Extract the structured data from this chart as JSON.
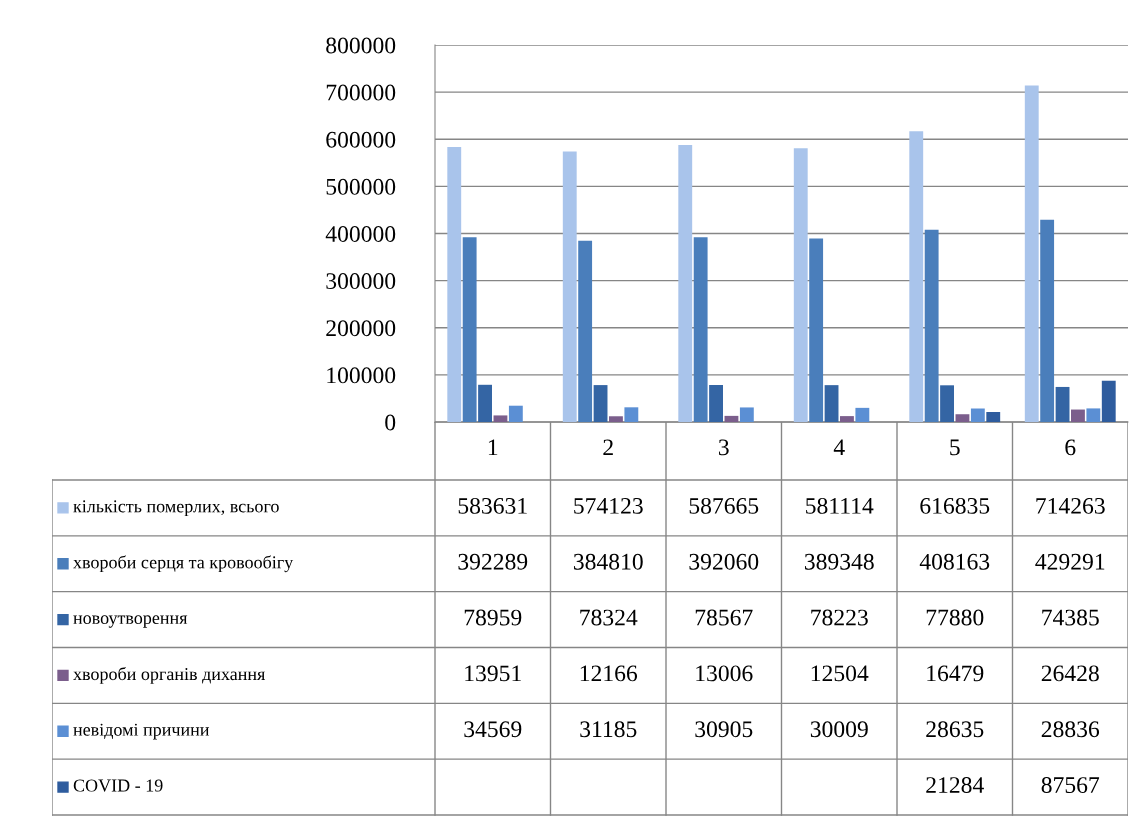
{
  "chart_data": {
    "type": "bar",
    "categories": [
      "1",
      "2",
      "3",
      "4",
      "5",
      "6"
    ],
    "series": [
      {
        "name": "кількість померлих, всього",
        "color": "#a9c4eb",
        "values": [
          583631,
          574123,
          587665,
          581114,
          616835,
          714263
        ]
      },
      {
        "name": "хвороби серця та кровообігу",
        "color": "#4a7ebb",
        "values": [
          392289,
          384810,
          392060,
          389348,
          408163,
          429291
        ]
      },
      {
        "name": "новоутворення",
        "color": "#3465a4",
        "values": [
          78959,
          78324,
          78567,
          78223,
          77880,
          74385
        ]
      },
      {
        "name": "хвороби органів дихання",
        "color": "#7b5e8c",
        "values": [
          13951,
          12166,
          13006,
          12504,
          16479,
          26428
        ]
      },
      {
        "name": "невідомі причини",
        "color": "#5b8fd4",
        "values": [
          34569,
          31185,
          30905,
          30009,
          28635,
          28836
        ]
      },
      {
        "name": "COVID - 19",
        "color": "#2e5c9e",
        "values": [
          null,
          null,
          null,
          null,
          21284,
          87567
        ]
      }
    ],
    "ylim": [
      0,
      800000
    ],
    "yticks": [
      0,
      100000,
      200000,
      300000,
      400000,
      500000,
      600000,
      700000,
      800000
    ],
    "grid": "y",
    "data_labels": true,
    "legend": "bottom"
  }
}
